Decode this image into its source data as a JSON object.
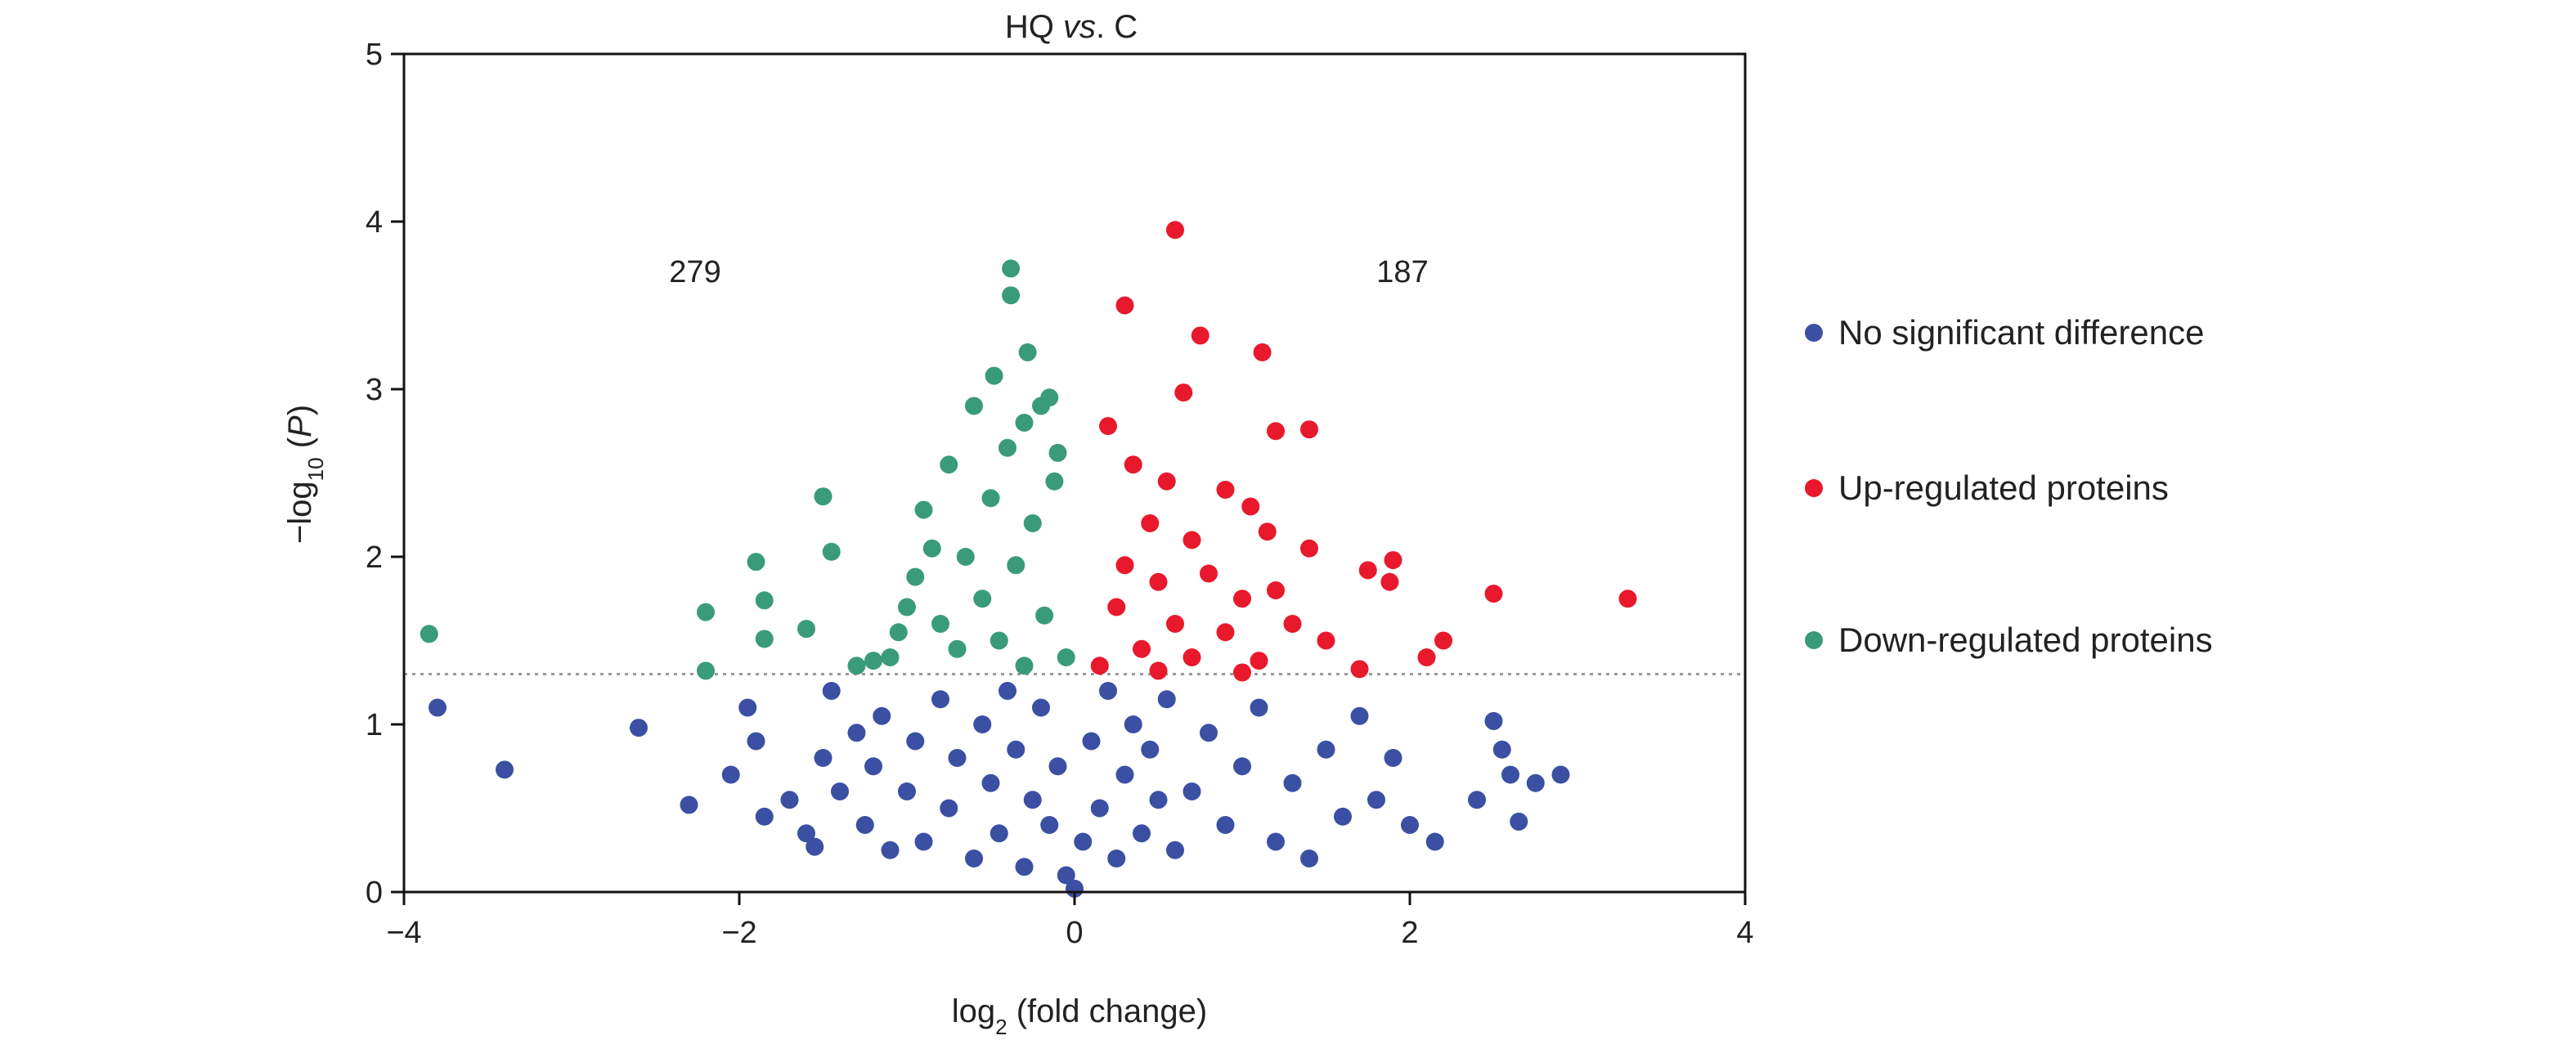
{
  "chart_data": {
    "type": "scatter",
    "title_main": "HQ ",
    "title_italic": "vs",
    "title_suffix": ". C",
    "xlabel_pre": "log",
    "xlabel_sub": "2",
    "xlabel_post": " (fold change)",
    "ylabel_pre": "−log",
    "ylabel_sub": "10",
    "ylabel_open": " (",
    "ylabel_italic": "P",
    "ylabel_close": ")",
    "xlim": [
      -4,
      4
    ],
    "ylim": [
      0,
      5
    ],
    "xticks": [
      -4,
      -2,
      0,
      2,
      4
    ],
    "xtick_labels": [
      "−4",
      "−2",
      "0",
      "2",
      "4"
    ],
    "yticks": [
      0,
      1,
      2,
      3,
      4,
      5
    ],
    "ytick_labels": [
      "0",
      "1",
      "2",
      "3",
      "4",
      "5"
    ],
    "threshold_y": 1.3,
    "grid": false,
    "legend_position": "right",
    "counts": {
      "down": "279",
      "up": "187"
    },
    "series": [
      {
        "name": "No significant difference",
        "color": "#3b4fa3",
        "points": [
          [
            -3.8,
            1.1
          ],
          [
            -3.4,
            0.73
          ],
          [
            -2.6,
            0.98
          ],
          [
            -2.3,
            0.52
          ],
          [
            -2.05,
            0.7
          ],
          [
            -1.95,
            1.1
          ],
          [
            -1.9,
            0.9
          ],
          [
            -1.85,
            0.45
          ],
          [
            -1.7,
            0.55
          ],
          [
            -1.6,
            0.35
          ],
          [
            -1.55,
            0.27
          ],
          [
            -1.5,
            0.8
          ],
          [
            -1.45,
            1.2
          ],
          [
            -1.4,
            0.6
          ],
          [
            -1.3,
            0.95
          ],
          [
            -1.25,
            0.4
          ],
          [
            -1.2,
            0.75
          ],
          [
            -1.15,
            1.05
          ],
          [
            -1.1,
            0.25
          ],
          [
            -1.0,
            0.6
          ],
          [
            -0.95,
            0.9
          ],
          [
            -0.9,
            0.3
          ],
          [
            -0.8,
            1.15
          ],
          [
            -0.75,
            0.5
          ],
          [
            -0.7,
            0.8
          ],
          [
            -0.6,
            0.2
          ],
          [
            -0.55,
            1.0
          ],
          [
            -0.5,
            0.65
          ],
          [
            -0.45,
            0.35
          ],
          [
            -0.4,
            1.2
          ],
          [
            -0.35,
            0.85
          ],
          [
            -0.3,
            0.15
          ],
          [
            -0.25,
            0.55
          ],
          [
            -0.2,
            1.1
          ],
          [
            -0.15,
            0.4
          ],
          [
            -0.1,
            0.75
          ],
          [
            -0.05,
            0.1
          ],
          [
            0.0,
            0.02
          ],
          [
            0.05,
            0.3
          ],
          [
            0.1,
            0.9
          ],
          [
            0.15,
            0.5
          ],
          [
            0.2,
            1.2
          ],
          [
            0.25,
            0.2
          ],
          [
            0.3,
            0.7
          ],
          [
            0.35,
            1.0
          ],
          [
            0.4,
            0.35
          ],
          [
            0.45,
            0.85
          ],
          [
            0.5,
            0.55
          ],
          [
            0.55,
            1.15
          ],
          [
            0.6,
            0.25
          ],
          [
            0.7,
            0.6
          ],
          [
            0.8,
            0.95
          ],
          [
            0.9,
            0.4
          ],
          [
            1.0,
            0.75
          ],
          [
            1.1,
            1.1
          ],
          [
            1.2,
            0.3
          ],
          [
            1.3,
            0.65
          ],
          [
            1.4,
            0.2
          ],
          [
            1.5,
            0.85
          ],
          [
            1.6,
            0.45
          ],
          [
            1.7,
            1.05
          ],
          [
            1.8,
            0.55
          ],
          [
            1.9,
            0.8
          ],
          [
            2.0,
            0.4
          ],
          [
            2.15,
            0.3
          ],
          [
            2.4,
            0.55
          ],
          [
            2.5,
            1.02
          ],
          [
            2.55,
            0.85
          ],
          [
            2.6,
            0.7
          ],
          [
            2.65,
            0.42
          ],
          [
            2.75,
            0.65
          ],
          [
            2.9,
            0.7
          ]
        ]
      },
      {
        "name": "Up-regulated proteins",
        "color": "#e8192c",
        "points": [
          [
            0.6,
            3.95
          ],
          [
            0.3,
            3.5
          ],
          [
            0.75,
            3.32
          ],
          [
            1.12,
            3.22
          ],
          [
            0.65,
            2.98
          ],
          [
            0.2,
            2.78
          ],
          [
            1.2,
            2.75
          ],
          [
            1.4,
            2.76
          ],
          [
            0.35,
            2.55
          ],
          [
            0.55,
            2.45
          ],
          [
            0.9,
            2.4
          ],
          [
            1.05,
            2.3
          ],
          [
            0.45,
            2.2
          ],
          [
            0.7,
            2.1
          ],
          [
            1.15,
            2.15
          ],
          [
            1.4,
            2.05
          ],
          [
            0.3,
            1.95
          ],
          [
            0.5,
            1.85
          ],
          [
            0.8,
            1.9
          ],
          [
            1.0,
            1.75
          ],
          [
            1.2,
            1.8
          ],
          [
            1.75,
            1.92
          ],
          [
            1.9,
            1.98
          ],
          [
            1.88,
            1.85
          ],
          [
            0.25,
            1.7
          ],
          [
            0.6,
            1.6
          ],
          [
            0.9,
            1.55
          ],
          [
            1.3,
            1.6
          ],
          [
            1.5,
            1.5
          ],
          [
            2.5,
            1.78
          ],
          [
            3.3,
            1.75
          ],
          [
            0.4,
            1.45
          ],
          [
            0.7,
            1.4
          ],
          [
            1.1,
            1.38
          ],
          [
            2.2,
            1.5
          ],
          [
            2.1,
            1.4
          ],
          [
            1.7,
            1.33
          ],
          [
            0.15,
            1.35
          ],
          [
            0.5,
            1.32
          ],
          [
            1.0,
            1.31
          ]
        ]
      },
      {
        "name": "Down-regulated proteins",
        "color": "#3a9b7a",
        "points": [
          [
            -3.85,
            1.54
          ],
          [
            -2.2,
            1.67
          ],
          [
            -2.2,
            1.32
          ],
          [
            -1.9,
            1.97
          ],
          [
            -1.85,
            1.74
          ],
          [
            -1.85,
            1.51
          ],
          [
            -1.6,
            1.57
          ],
          [
            -1.5,
            2.36
          ],
          [
            -1.45,
            2.03
          ],
          [
            -1.3,
            1.35
          ],
          [
            -1.2,
            1.38
          ],
          [
            -1.1,
            1.4
          ],
          [
            -1.05,
            1.55
          ],
          [
            -1.0,
            1.7
          ],
          [
            -0.95,
            1.88
          ],
          [
            -0.9,
            2.28
          ],
          [
            -0.85,
            2.05
          ],
          [
            -0.8,
            1.6
          ],
          [
            -0.75,
            2.55
          ],
          [
            -0.7,
            1.45
          ],
          [
            -0.65,
            2.0
          ],
          [
            -0.6,
            2.9
          ],
          [
            -0.55,
            1.75
          ],
          [
            -0.5,
            2.35
          ],
          [
            -0.48,
            3.08
          ],
          [
            -0.45,
            1.5
          ],
          [
            -0.4,
            2.65
          ],
          [
            -0.38,
            3.72
          ],
          [
            -0.38,
            3.56
          ],
          [
            -0.35,
            1.95
          ],
          [
            -0.3,
            2.8
          ],
          [
            -0.28,
            3.22
          ],
          [
            -0.25,
            2.2
          ],
          [
            -0.2,
            2.9
          ],
          [
            -0.18,
            1.65
          ],
          [
            -0.15,
            2.95
          ],
          [
            -0.12,
            2.45
          ],
          [
            -0.1,
            2.62
          ],
          [
            -0.05,
            1.4
          ],
          [
            -0.3,
            1.35
          ]
        ]
      }
    ]
  }
}
